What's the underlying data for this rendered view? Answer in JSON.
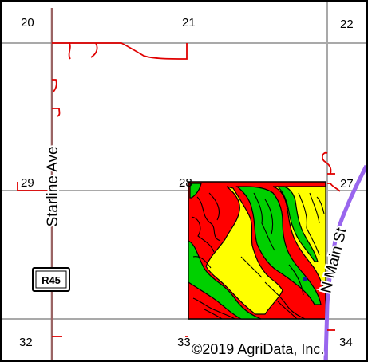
{
  "map": {
    "section_labels": {
      "s20": "20",
      "s21": "21",
      "s22": "22",
      "s27": "27",
      "s28": "28",
      "s29": "29",
      "s32": "32",
      "s33": "33",
      "s34": "34"
    },
    "roads": {
      "starline": "Starline Ave",
      "n_main": "N Main St"
    },
    "route_shield": "R45",
    "copyright": "©2019 AgriData, Inc.",
    "colors": {
      "field_red": "#ff0000",
      "field_yellow": "#ffff00",
      "field_green": "#00d000",
      "section_line": "#a9a9a9",
      "road_line": "#9a6464",
      "stream": "#e00000",
      "highway": "#9966ee"
    }
  }
}
